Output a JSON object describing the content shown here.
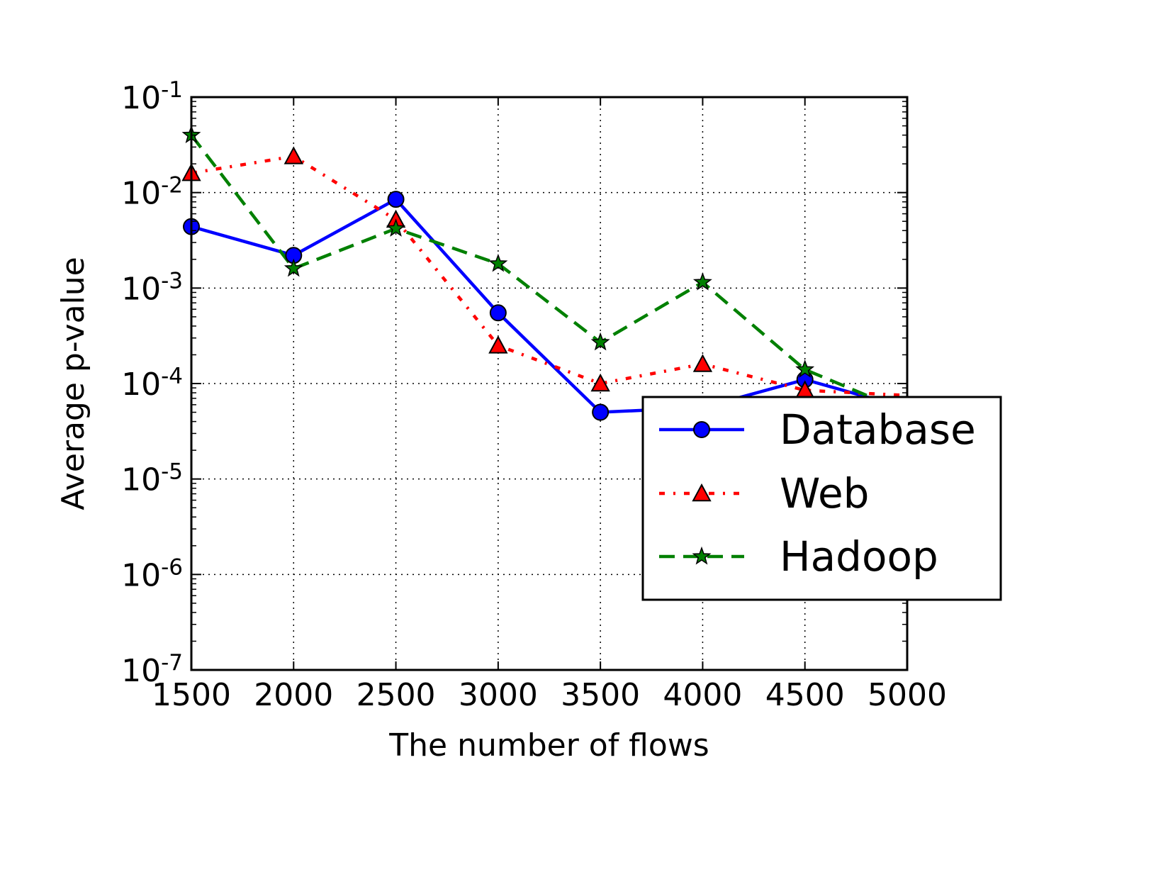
{
  "chart_data": {
    "type": "line",
    "title": "",
    "xlabel": "The number of flows",
    "ylabel": "Average p-value",
    "xlim": [
      1500,
      5000
    ],
    "ylim": [
      1e-07,
      0.1
    ],
    "yscale": "log",
    "grid": true,
    "legend_position": "lower-right",
    "x_ticks": [
      "1500",
      "2000",
      "2500",
      "3000",
      "3500",
      "4000",
      "4500",
      "5000"
    ],
    "y_ticks": [
      {
        "base": "10",
        "exp": "-1"
      },
      {
        "base": "10",
        "exp": "-2"
      },
      {
        "base": "10",
        "exp": "-3"
      },
      {
        "base": "10",
        "exp": "-4"
      },
      {
        "base": "10",
        "exp": "-5"
      },
      {
        "base": "10",
        "exp": "-6"
      },
      {
        "base": "10",
        "exp": "-7"
      }
    ],
    "x": [
      1500,
      2000,
      2500,
      3000,
      3500,
      4000,
      4500,
      5000
    ],
    "series": [
      {
        "name": "Database",
        "color": "#0000ff",
        "marker": "circle",
        "linestyle": "solid",
        "values": [
          0.0044,
          0.0022,
          0.0085,
          0.00055,
          5e-05,
          5.6e-05,
          0.00011,
          5.5e-05
        ]
      },
      {
        "name": "Web",
        "color": "#ff0000",
        "marker": "triangle",
        "linestyle": "dashdot",
        "values": [
          0.016,
          0.024,
          0.0052,
          0.00025,
          0.0001,
          0.00016,
          8.5e-05,
          7.5e-05
        ]
      },
      {
        "name": "Hadoop",
        "color": "#008000",
        "marker": "star",
        "linestyle": "dashed",
        "values": [
          0.04,
          0.0016,
          0.0042,
          0.0018,
          0.00027,
          0.00115,
          0.00014,
          5e-05
        ]
      }
    ]
  }
}
